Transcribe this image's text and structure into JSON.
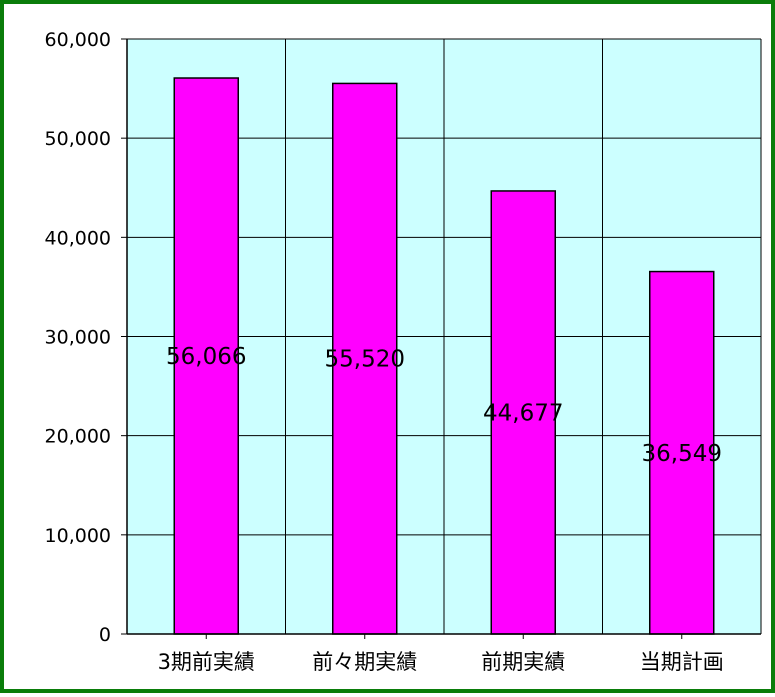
{
  "chart_data": {
    "type": "bar",
    "categories": [
      "3期前実績",
      "前々期実績",
      "前期実績",
      "当期計画"
    ],
    "values": [
      56066,
      55520,
      44677,
      36549
    ],
    "value_labels": [
      "56,066",
      "55,520",
      "44,677",
      "36,549"
    ],
    "title": "",
    "xlabel": "",
    "ylabel": "",
    "ylim": [
      0,
      60000
    ],
    "y_ticks": [
      0,
      10000,
      20000,
      30000,
      40000,
      50000,
      60000
    ],
    "y_tick_labels": [
      "0",
      "10,000",
      "20,000",
      "30,000",
      "40,000",
      "50,000",
      "60,000"
    ],
    "grid": true,
    "legend": "none",
    "colors": {
      "bar_fill": "#ff00ff",
      "bar_stroke": "#000000",
      "plot_background": "#ccffff",
      "grid": "#000000",
      "frame_border": "#0a7d0a"
    }
  }
}
